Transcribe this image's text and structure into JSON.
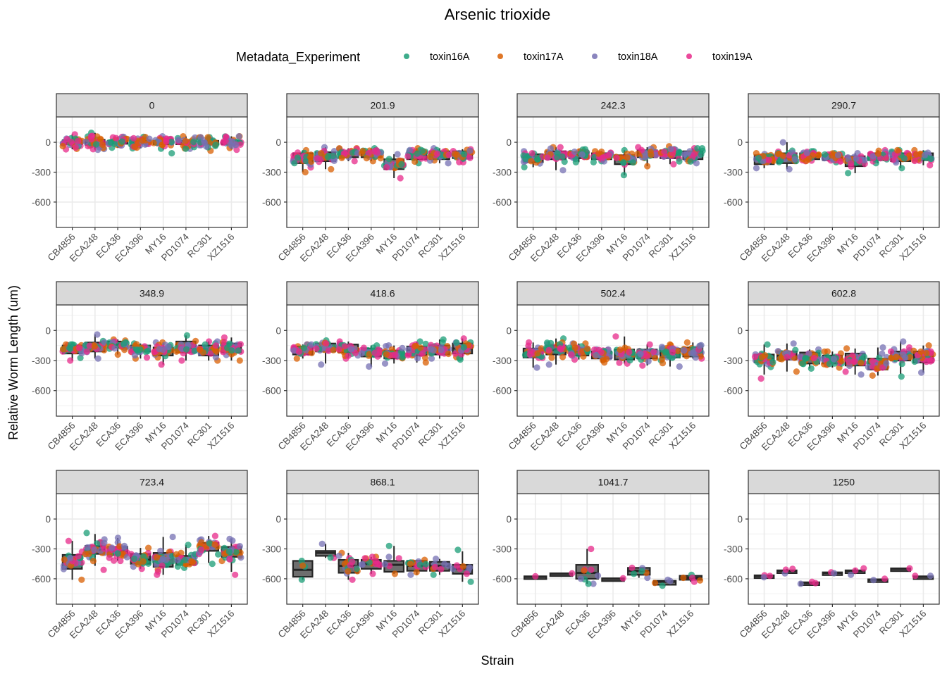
{
  "chart_data": {
    "type": "scatter",
    "subtype": "faceted jittered points with boxplots",
    "title": "Arsenic trioxide",
    "xlabel": "Strain",
    "ylabel": "Relative Worm Length (um)",
    "ylim": [
      -855,
      255
    ],
    "yticks": [
      0,
      -300,
      -600
    ],
    "grid": true,
    "legend": {
      "title": "Metadata_Experiment",
      "placement": "top",
      "entries": [
        {
          "name": "toxin16A",
          "color": "#1b9e77"
        },
        {
          "name": "toxin17A",
          "color": "#d95f02"
        },
        {
          "name": "toxin18A",
          "color": "#7570b3"
        },
        {
          "name": "toxin19A",
          "color": "#e7298a"
        }
      ]
    },
    "facet_variable": "concentration",
    "panels": [
      {
        "label": "0",
        "strains": [
          "CB4856",
          "ECA248",
          "ECA36",
          "ECA396",
          "MY16",
          "PD1074",
          "RC301",
          "XZ1516"
        ],
        "summary": [
          [
            0,
            -20,
            20,
            40,
            -70,
            80,
            30
          ],
          [
            5,
            -25,
            25,
            45,
            -75,
            95,
            30
          ],
          [
            0,
            -15,
            15,
            35,
            -55,
            55,
            30
          ],
          [
            0,
            -15,
            15,
            35,
            -60,
            55,
            30
          ],
          [
            0,
            -20,
            15,
            35,
            -110,
            60,
            30
          ],
          [
            0,
            -20,
            15,
            35,
            -65,
            60,
            30
          ],
          [
            0,
            -20,
            15,
            35,
            -85,
            50,
            30
          ],
          [
            0,
            -20,
            15,
            35,
            -75,
            60,
            30
          ]
        ]
      },
      {
        "label": "201.9",
        "strains": [
          "CB4856",
          "ECA248",
          "ECA36",
          "ECA396",
          "MY16",
          "PD1074",
          "RC301",
          "XZ1516"
        ],
        "summary": [
          [
            -160,
            -210,
            -110,
            40,
            -300,
            -80,
            30
          ],
          [
            -140,
            -190,
            -100,
            40,
            -270,
            -50,
            30
          ],
          [
            -110,
            -150,
            -90,
            30,
            -190,
            -60,
            30
          ],
          [
            -110,
            -150,
            -90,
            30,
            -190,
            -60,
            30
          ],
          [
            -220,
            -270,
            -170,
            40,
            -360,
            -120,
            30
          ],
          [
            -120,
            -170,
            -90,
            35,
            -210,
            -60,
            30
          ],
          [
            -120,
            -170,
            -90,
            35,
            -210,
            -60,
            30
          ],
          [
            -120,
            -160,
            -90,
            35,
            -200,
            -70,
            30
          ]
        ]
      },
      {
        "label": "242.3",
        "strains": [
          "CB4856",
          "ECA248",
          "ECA36",
          "ECA396",
          "MY16",
          "PD1074",
          "RC301",
          "XZ1516"
        ],
        "summary": [
          [
            -150,
            -200,
            -120,
            35,
            -250,
            -90,
            30
          ],
          [
            -130,
            -170,
            -90,
            35,
            -280,
            -50,
            30
          ],
          [
            -130,
            -160,
            -100,
            30,
            -200,
            -70,
            30
          ],
          [
            -140,
            -170,
            -110,
            30,
            -200,
            -90,
            30
          ],
          [
            -170,
            -220,
            -130,
            40,
            -330,
            -80,
            30
          ],
          [
            -110,
            -150,
            -80,
            35,
            -240,
            -50,
            30
          ],
          [
            -110,
            -160,
            -80,
            35,
            -220,
            -40,
            30
          ],
          [
            -120,
            -170,
            -90,
            35,
            -210,
            -60,
            30
          ]
        ]
      },
      {
        "label": "290.7",
        "strains": [
          "CB4856",
          "ECA248",
          "ECA36",
          "ECA396",
          "MY16",
          "PD1074",
          "RC301",
          "XZ1516"
        ],
        "summary": [
          [
            -170,
            -220,
            -130,
            35,
            -260,
            -110,
            30
          ],
          [
            -160,
            -210,
            -110,
            40,
            -270,
            0,
            30
          ],
          [
            -140,
            -170,
            -110,
            30,
            -190,
            -90,
            30
          ],
          [
            -150,
            -180,
            -130,
            25,
            -200,
            -110,
            30
          ],
          [
            -180,
            -240,
            -140,
            35,
            -310,
            -110,
            30
          ],
          [
            -140,
            -180,
            -110,
            30,
            -210,
            -80,
            30
          ],
          [
            -140,
            -190,
            -110,
            35,
            -260,
            -80,
            30
          ],
          [
            -140,
            -180,
            -110,
            30,
            -230,
            -80,
            30
          ]
        ]
      },
      {
        "label": "348.9",
        "strains": [
          "CB4856",
          "ECA248",
          "ECA36",
          "ECA396",
          "MY16",
          "PD1074",
          "RC301",
          "XZ1516"
        ],
        "summary": [
          [
            -190,
            -230,
            -150,
            35,
            -300,
            -140,
            30
          ],
          [
            -160,
            -210,
            -120,
            40,
            -280,
            -40,
            30
          ],
          [
            -140,
            -170,
            -110,
            30,
            -240,
            -90,
            30
          ],
          [
            -180,
            -210,
            -150,
            30,
            -280,
            -130,
            30
          ],
          [
            -200,
            -250,
            -170,
            40,
            -340,
            -120,
            30
          ],
          [
            -170,
            -220,
            -110,
            40,
            -300,
            -50,
            30
          ],
          [
            -190,
            -250,
            -150,
            40,
            -300,
            -110,
            30
          ],
          [
            -180,
            -220,
            -130,
            40,
            -300,
            -70,
            30
          ]
        ]
      },
      {
        "label": "418.6",
        "strains": [
          "CB4856",
          "ECA248",
          "ECA36",
          "ECA396",
          "MY16",
          "PD1074",
          "RC301",
          "XZ1516"
        ],
        "summary": [
          [
            -200,
            -240,
            -160,
            35,
            -280,
            -140,
            30
          ],
          [
            -170,
            -210,
            -130,
            35,
            -340,
            -100,
            30
          ],
          [
            -180,
            -220,
            -140,
            35,
            -280,
            -110,
            30
          ],
          [
            -220,
            -260,
            -180,
            35,
            -360,
            -150,
            30
          ],
          [
            -240,
            -280,
            -200,
            35,
            -330,
            -150,
            30
          ],
          [
            -200,
            -250,
            -160,
            40,
            -320,
            -110,
            30
          ],
          [
            -190,
            -240,
            -150,
            40,
            -280,
            -90,
            30
          ],
          [
            -180,
            -230,
            -130,
            40,
            -290,
            -80,
            30
          ]
        ]
      },
      {
        "label": "502.4",
        "strains": [
          "CB4856",
          "ECA248",
          "ECA36",
          "ECA396",
          "MY16",
          "PD1074",
          "RC301",
          "XZ1516"
        ],
        "summary": [
          [
            -220,
            -270,
            -180,
            40,
            -370,
            -120,
            30
          ],
          [
            -190,
            -240,
            -150,
            40,
            -340,
            -80,
            30
          ],
          [
            -210,
            -250,
            -180,
            35,
            -290,
            -130,
            30
          ],
          [
            -240,
            -280,
            -210,
            30,
            -320,
            -190,
            30
          ],
          [
            -240,
            -290,
            -190,
            40,
            -330,
            -60,
            30
          ],
          [
            -230,
            -280,
            -190,
            40,
            -350,
            -140,
            30
          ],
          [
            -220,
            -270,
            -180,
            40,
            -360,
            -140,
            30
          ],
          [
            -210,
            -260,
            -170,
            40,
            -280,
            -120,
            30
          ]
        ]
      },
      {
        "label": "602.8",
        "strains": [
          "CB4856",
          "ECA248",
          "ECA36",
          "ECA396",
          "MY16",
          "PD1074",
          "RC301",
          "XZ1516"
        ],
        "summary": [
          [
            -280,
            -320,
            -240,
            40,
            -480,
            -140,
            30
          ],
          [
            -250,
            -290,
            -210,
            40,
            -410,
            -130,
            30
          ],
          [
            -270,
            -330,
            -220,
            40,
            -380,
            -190,
            30
          ],
          [
            -290,
            -330,
            -250,
            35,
            -370,
            -210,
            30
          ],
          [
            -290,
            -350,
            -230,
            45,
            -440,
            -180,
            30
          ],
          [
            -330,
            -390,
            -280,
            45,
            -450,
            -170,
            30
          ],
          [
            -250,
            -300,
            -210,
            45,
            -460,
            -110,
            30
          ],
          [
            -260,
            -320,
            -210,
            45,
            -420,
            -150,
            30
          ]
        ]
      },
      {
        "label": "723.4",
        "strains": [
          "CB4856",
          "ECA248",
          "ECA36",
          "ECA396",
          "MY16",
          "PD1074",
          "RC301",
          "XZ1516"
        ],
        "summary": [
          [
            -430,
            -500,
            -360,
            60,
            -610,
            -220,
            30
          ],
          [
            -310,
            -350,
            -270,
            50,
            -510,
            -140,
            30
          ],
          [
            -320,
            -360,
            -280,
            50,
            -420,
            -190,
            30
          ],
          [
            -410,
            -450,
            -350,
            45,
            -500,
            -290,
            30
          ],
          [
            -410,
            -480,
            -340,
            60,
            -560,
            -180,
            30
          ],
          [
            -420,
            -460,
            -370,
            40,
            -490,
            -260,
            30
          ],
          [
            -280,
            -320,
            -240,
            45,
            -450,
            -170,
            30
          ],
          [
            -340,
            -380,
            -280,
            55,
            -560,
            -200,
            30
          ]
        ]
      },
      {
        "label": "868.1",
        "strains": [
          "CB4856",
          "ECA248",
          "ECA36",
          "ECA396",
          "MY16",
          "PD1074",
          "RC301",
          "XZ1516"
        ],
        "summary": [
          [
            -510,
            -580,
            -420,
            45,
            -610,
            -420,
            4
          ],
          [
            -340,
            -370,
            -320,
            30,
            -390,
            -250,
            3
          ],
          [
            -470,
            -540,
            -410,
            55,
            -610,
            -340,
            16
          ],
          [
            -450,
            -500,
            -410,
            40,
            -550,
            -380,
            14
          ],
          [
            -460,
            -530,
            -420,
            50,
            -550,
            -270,
            6
          ],
          [
            -470,
            -520,
            -420,
            40,
            -560,
            -410,
            14
          ],
          [
            -470,
            -520,
            -430,
            40,
            -560,
            -400,
            8
          ],
          [
            -500,
            -550,
            -460,
            45,
            -630,
            -310,
            9
          ]
        ]
      },
      {
        "label": "1041.7",
        "strains": [
          "CB4856",
          "ECA248",
          "ECA36",
          "ECA396",
          "MY16",
          "PD1074",
          "XZ1516"
        ],
        "summary": [
          [
            -580,
            -585,
            -575,
            5,
            -585,
            -575,
            1
          ],
          [
            -550,
            -555,
            -545,
            10,
            -560,
            -545,
            1
          ],
          [
            -540,
            -600,
            -460,
            60,
            -650,
            -300,
            10
          ],
          [
            -600,
            -605,
            -595,
            5,
            -605,
            -595,
            1
          ],
          [
            -520,
            -560,
            -490,
            30,
            -590,
            -490,
            6
          ],
          [
            -630,
            -660,
            -620,
            20,
            -670,
            -610,
            4
          ],
          [
            -590,
            -610,
            -570,
            25,
            -630,
            -560,
            5
          ]
        ]
      },
      {
        "label": "1250",
        "strains": [
          "CB4856",
          "ECA248",
          "ECA36",
          "ECA396",
          "MY16",
          "PD1074",
          "RC301",
          "XZ1516"
        ],
        "summary": [
          [
            -570,
            -575,
            -565,
            10,
            -585,
            -565,
            3
          ],
          [
            -520,
            -525,
            -515,
            20,
            -545,
            -500,
            3
          ],
          [
            -640,
            -645,
            -635,
            10,
            -650,
            -630,
            3
          ],
          [
            -540,
            -545,
            -535,
            10,
            -550,
            -535,
            2
          ],
          [
            -520,
            -530,
            -515,
            20,
            -560,
            -495,
            3
          ],
          [
            -610,
            -615,
            -605,
            10,
            -615,
            -600,
            2
          ],
          [
            -500,
            -505,
            -495,
            5,
            -505,
            -495,
            1
          ],
          [
            -580,
            -585,
            -575,
            10,
            -590,
            -570,
            2
          ]
        ]
      }
    ],
    "summary_fields": [
      "median",
      "q1",
      "q3",
      "point_sd",
      "min",
      "max",
      "n_points"
    ]
  }
}
